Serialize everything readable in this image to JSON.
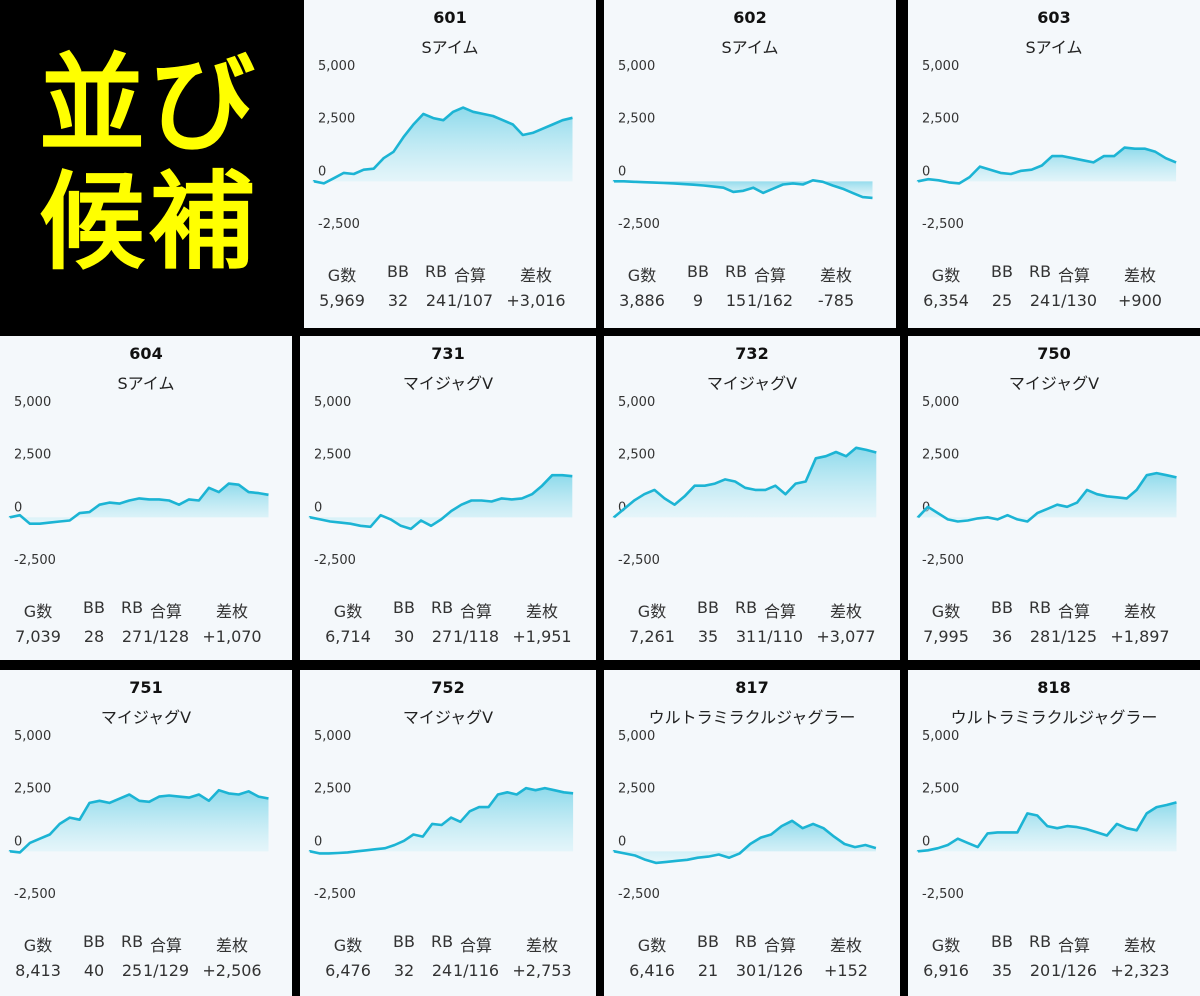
{
  "banner": {
    "line1": "並び",
    "line2": "候補"
  },
  "stat_headers": [
    "G数",
    "BB",
    "RB",
    "合算",
    "差枚"
  ],
  "chart_data": [
    {
      "type": "area",
      "title": "601",
      "subtitle": "Sアイム",
      "ylim": [
        -2500,
        5000
      ],
      "y_ticks": [
        "5,000",
        "2,500",
        "0",
        "-2,500"
      ],
      "values": [
        0,
        -100,
        150,
        400,
        350,
        550,
        600,
        1100,
        1400,
        2100,
        2700,
        3200,
        3000,
        2900,
        3300,
        3500,
        3300,
        3200,
        3100,
        2900,
        2700,
        2200,
        2300,
        2500,
        2700,
        2900,
        3016
      ],
      "stats": [
        "5,969",
        "32",
        "24",
        "1/107",
        "+3,016"
      ]
    },
    {
      "type": "area",
      "title": "602",
      "subtitle": "Sアイム",
      "ylim": [
        -2500,
        5000
      ],
      "y_ticks": [
        "5,000",
        "2,500",
        "0",
        "-2,500"
      ],
      "values": [
        0,
        0,
        -20,
        -40,
        -60,
        -80,
        -100,
        -130,
        -160,
        -200,
        -250,
        -300,
        -500,
        -450,
        -300,
        -550,
        -350,
        -150,
        -100,
        -150,
        50,
        -20,
        -200,
        -350,
        -550,
        -750,
        -785
      ],
      "stats": [
        "3,886",
        "9",
        "15",
        "1/162",
        "-785"
      ]
    },
    {
      "type": "area",
      "title": "603",
      "subtitle": "Sアイム",
      "ylim": [
        -2500,
        5000
      ],
      "y_ticks": [
        "5,000",
        "2,500",
        "0",
        "-2,500"
      ],
      "values": [
        0,
        100,
        50,
        -50,
        -100,
        200,
        700,
        550,
        400,
        350,
        500,
        550,
        750,
        1200,
        1200,
        1100,
        1000,
        900,
        1200,
        1200,
        1600,
        1550,
        1550,
        1400,
        1100,
        900
      ],
      "stats": [
        "6,354",
        "25",
        "24",
        "1/130",
        "+900"
      ]
    },
    {
      "type": "area",
      "title": "604",
      "subtitle": "Sアイム",
      "ylim": [
        -2500,
        5000
      ],
      "y_ticks": [
        "5,000",
        "2,500",
        "0",
        "-2,500"
      ],
      "values": [
        0,
        100,
        -300,
        -300,
        -250,
        -200,
        -150,
        200,
        250,
        600,
        700,
        650,
        800,
        900,
        850,
        850,
        800,
        600,
        850,
        800,
        1400,
        1200,
        1600,
        1550,
        1200,
        1150,
        1070
      ],
      "stats": [
        "7,039",
        "28",
        "27",
        "1/128",
        "+1,070"
      ]
    },
    {
      "type": "area",
      "title": "731",
      "subtitle": "マイジャグV",
      "ylim": [
        -2500,
        5000
      ],
      "y_ticks": [
        "5,000",
        "2,500",
        "0",
        "-2,500"
      ],
      "values": [
        0,
        -100,
        -200,
        -250,
        -300,
        -400,
        -450,
        100,
        -100,
        -400,
        -550,
        -150,
        -400,
        -100,
        300,
        600,
        800,
        800,
        750,
        900,
        850,
        900,
        1100,
        1500,
        2000,
        2000,
        1951
      ],
      "stats": [
        "6,714",
        "30",
        "27",
        "1/118",
        "+1,951"
      ]
    },
    {
      "type": "area",
      "title": "732",
      "subtitle": "マイジャグV",
      "ylim": [
        -2500,
        5000
      ],
      "y_ticks": [
        "5,000",
        "2,500",
        "0",
        "-2,500"
      ],
      "values": [
        0,
        400,
        800,
        1100,
        1300,
        900,
        600,
        1000,
        1500,
        1500,
        1600,
        1800,
        1700,
        1400,
        1300,
        1300,
        1500,
        1100,
        1600,
        1700,
        2800,
        2900,
        3100,
        2900,
        3300,
        3200,
        3077
      ],
      "stats": [
        "7,261",
        "35",
        "31",
        "1/110",
        "+3,077"
      ]
    },
    {
      "type": "area",
      "title": "750",
      "subtitle": "マイジャグV",
      "ylim": [
        -2500,
        5000
      ],
      "y_ticks": [
        "5,000",
        "2,500",
        "0",
        "-2,500"
      ],
      "values": [
        0,
        500,
        200,
        -100,
        -200,
        -150,
        -50,
        0,
        -100,
        100,
        -100,
        -200,
        200,
        400,
        600,
        500,
        700,
        1300,
        1100,
        1000,
        950,
        900,
        1300,
        2000,
        2100,
        2000,
        1897
      ],
      "stats": [
        "7,995",
        "36",
        "28",
        "1/125",
        "+1,897"
      ]
    },
    {
      "type": "area",
      "title": "751",
      "subtitle": "マイジャグV",
      "ylim": [
        -2500,
        5000
      ],
      "y_ticks": [
        "5,000",
        "2,500",
        "0",
        "-2,500"
      ],
      "values": [
        0,
        -50,
        400,
        600,
        800,
        1300,
        1600,
        1500,
        2300,
        2400,
        2300,
        2500,
        2700,
        2400,
        2350,
        2600,
        2650,
        2600,
        2550,
        2700,
        2400,
        2900,
        2750,
        2700,
        2850,
        2600,
        2506
      ],
      "stats": [
        "8,413",
        "40",
        "25",
        "1/129",
        "+2,506"
      ]
    },
    {
      "type": "area",
      "title": "752",
      "subtitle": "マイジャグV",
      "ylim": [
        -2500,
        5000
      ],
      "y_ticks": [
        "5,000",
        "2,500",
        "0",
        "-2,500"
      ],
      "values": [
        0,
        -100,
        -100,
        -80,
        -50,
        0,
        50,
        100,
        150,
        300,
        500,
        800,
        700,
        1300,
        1250,
        1600,
        1400,
        1900,
        2100,
        2100,
        2700,
        2800,
        2700,
        3000,
        2900,
        3000,
        2900,
        2800,
        2753
      ],
      "stats": [
        "6,476",
        "32",
        "24",
        "1/116",
        "+2,753"
      ]
    },
    {
      "type": "area",
      "title": "817",
      "subtitle": "ウルトラミラクルジャグラー",
      "ylim": [
        -2500,
        5000
      ],
      "y_ticks": [
        "5,000",
        "2,500",
        "0",
        "-2,500"
      ],
      "values": [
        0,
        -100,
        -200,
        -400,
        -550,
        -500,
        -450,
        -400,
        -300,
        -250,
        -150,
        -300,
        -100,
        350,
        650,
        800,
        1200,
        1450,
        1100,
        1300,
        1100,
        700,
        350,
        200,
        300,
        152
      ],
      "stats": [
        "6,416",
        "21",
        "30",
        "1/126",
        "+152"
      ]
    },
    {
      "type": "area",
      "title": "818",
      "subtitle": "ウルトラミラクルジャグラー",
      "ylim": [
        -2500,
        5000
      ],
      "y_ticks": [
        "5,000",
        "2,500",
        "0",
        "-2,500"
      ],
      "values": [
        0,
        50,
        150,
        300,
        600,
        400,
        200,
        850,
        900,
        900,
        900,
        1800,
        1700,
        1200,
        1100,
        1200,
        1150,
        1050,
        900,
        750,
        1300,
        1100,
        1000,
        1800,
        2100,
        2200,
        2323
      ],
      "stats": [
        "6,916",
        "35",
        "20",
        "1/126",
        "+2,323"
      ]
    }
  ]
}
